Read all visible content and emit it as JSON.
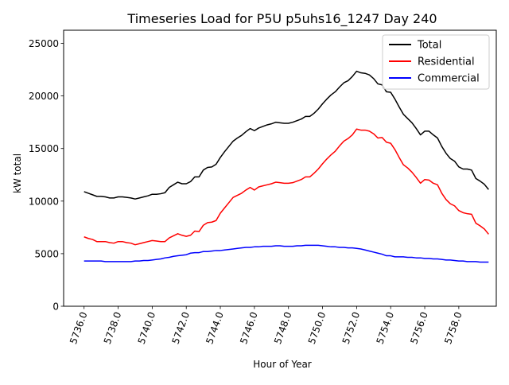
{
  "chart_data": {
    "type": "line",
    "title": "Timeseries Load for P5U p5uhs16_1247  Day 240",
    "xlabel": "Hour of Year",
    "ylabel": "kW total",
    "xlim": [
      5734.8,
      5760.2
    ],
    "ylim": [
      0,
      26250
    ],
    "x_start": 5736.0,
    "x_step": 0.25,
    "xticks": [
      5736,
      5738,
      5740,
      5742,
      5744,
      5746,
      5748,
      5750,
      5752,
      5754,
      5756,
      5758
    ],
    "xtick_labels": [
      "5736.0",
      "5738.0",
      "5740.0",
      "5742.0",
      "5744.0",
      "5746.0",
      "5748.0",
      "5750.0",
      "5752.0",
      "5754.0",
      "5756.0",
      "5758.0"
    ],
    "yticks": [
      0,
      5000,
      10000,
      15000,
      20000,
      25000
    ],
    "ytick_labels": [
      "0",
      "5000",
      "10000",
      "15000",
      "20000",
      "25000"
    ],
    "legend_position": "top-right",
    "series": [
      {
        "name": "Total",
        "color": "#000000",
        "values": [
          10900,
          10750,
          10600,
          10450,
          10450,
          10400,
          10300,
          10300,
          10400,
          10400,
          10350,
          10300,
          10200,
          10300,
          10400,
          10500,
          10650,
          10650,
          10700,
          10800,
          11300,
          11550,
          11800,
          11650,
          11650,
          11850,
          12300,
          12300,
          12950,
          13200,
          13250,
          13500,
          14150,
          14700,
          15200,
          15700,
          16000,
          16250,
          16600,
          16900,
          16700,
          16950,
          17100,
          17250,
          17350,
          17500,
          17450,
          17400,
          17400,
          17500,
          17650,
          17800,
          18050,
          18050,
          18350,
          18750,
          19250,
          19700,
          20100,
          20400,
          20850,
          21250,
          21450,
          21850,
          22350,
          22200,
          22150,
          22000,
          21650,
          21150,
          21050,
          20400,
          20350,
          19700,
          18950,
          18250,
          17850,
          17450,
          16900,
          16300,
          16650,
          16650,
          16300,
          16000,
          15200,
          14550,
          14050,
          13800,
          13250,
          13050,
          13050,
          12950,
          12150,
          11900,
          11600,
          11100
        ]
      },
      {
        "name": "Residential",
        "color": "#ff0000",
        "values": [
          6600,
          6450,
          6350,
          6150,
          6150,
          6150,
          6050,
          6000,
          6150,
          6150,
          6050,
          6000,
          5850,
          5950,
          6050,
          6150,
          6250,
          6200,
          6150,
          6150,
          6500,
          6700,
          6900,
          6750,
          6650,
          6750,
          7150,
          7100,
          7700,
          7950,
          8000,
          8150,
          8850,
          9350,
          9850,
          10350,
          10550,
          10750,
          11050,
          11300,
          11050,
          11350,
          11450,
          11550,
          11650,
          11800,
          11750,
          11700,
          11700,
          11750,
          11900,
          12050,
          12300,
          12300,
          12650,
          13050,
          13550,
          14000,
          14400,
          14750,
          15250,
          15700,
          15950,
          16300,
          16850,
          16750,
          16750,
          16650,
          16400,
          16000,
          16050,
          15600,
          15500,
          14900,
          14150,
          13450,
          13150,
          12750,
          12250,
          11700,
          12050,
          12000,
          11700,
          11550,
          10750,
          10150,
          9750,
          9550,
          9100,
          8900,
          8800,
          8750,
          7900,
          7650,
          7350,
          6850
        ]
      },
      {
        "name": "Commercial",
        "color": "#0000ff",
        "values": [
          4300,
          4300,
          4300,
          4300,
          4300,
          4250,
          4250,
          4250,
          4250,
          4250,
          4250,
          4250,
          4300,
          4300,
          4350,
          4350,
          4400,
          4450,
          4500,
          4600,
          4650,
          4750,
          4800,
          4850,
          4900,
          5050,
          5100,
          5100,
          5200,
          5200,
          5250,
          5300,
          5300,
          5350,
          5400,
          5450,
          5500,
          5550,
          5600,
          5600,
          5650,
          5650,
          5700,
          5700,
          5700,
          5750,
          5750,
          5700,
          5700,
          5700,
          5750,
          5750,
          5800,
          5800,
          5800,
          5800,
          5750,
          5700,
          5650,
          5650,
          5600,
          5600,
          5550,
          5550,
          5500,
          5450,
          5350,
          5250,
          5150,
          5050,
          4950,
          4800,
          4800,
          4700,
          4700,
          4700,
          4650,
          4650,
          4600,
          4600,
          4550,
          4550,
          4500,
          4500,
          4450,
          4400,
          4400,
          4350,
          4300,
          4300,
          4250,
          4250,
          4250,
          4200,
          4200,
          4200
        ]
      }
    ]
  }
}
